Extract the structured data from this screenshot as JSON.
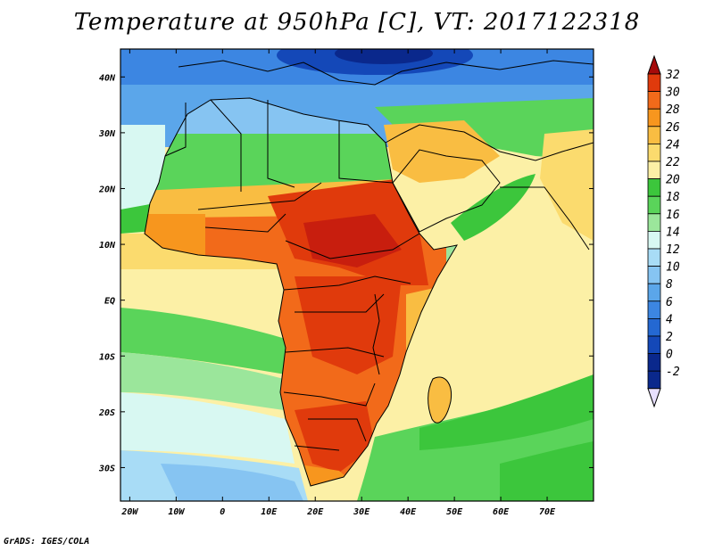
{
  "title": "Temperature at 950hPa [C], VT: 2017122318",
  "credit": "GrADS: IGES/COLA",
  "map": {
    "lat_range": [
      -36,
      45
    ],
    "lon_range": [
      -22,
      80
    ],
    "lat_ticks": [
      {
        "lat": 40,
        "label": "40N"
      },
      {
        "lat": 30,
        "label": "30N"
      },
      {
        "lat": 20,
        "label": "20N"
      },
      {
        "lat": 10,
        "label": "10N"
      },
      {
        "lat": 0,
        "label": "EQ"
      },
      {
        "lat": -10,
        "label": "10S"
      },
      {
        "lat": -20,
        "label": "20S"
      },
      {
        "lat": -30,
        "label": "30S"
      }
    ],
    "lon_ticks": [
      {
        "lon": -20,
        "label": "20W"
      },
      {
        "lon": -10,
        "label": "10W"
      },
      {
        "lon": 0,
        "label": "0"
      },
      {
        "lon": 10,
        "label": "10E"
      },
      {
        "lon": 20,
        "label": "20E"
      },
      {
        "lon": 30,
        "label": "30E"
      },
      {
        "lon": 40,
        "label": "40E"
      },
      {
        "lon": 50,
        "label": "50E"
      },
      {
        "lon": 60,
        "label": "60E"
      },
      {
        "lon": 70,
        "label": "70E"
      }
    ]
  },
  "colorbar": {
    "labels": [
      "32",
      "30",
      "28",
      "26",
      "24",
      "22",
      "20",
      "18",
      "16",
      "14",
      "12",
      "10",
      "8",
      "6",
      "4",
      "2",
      "0",
      "-2"
    ],
    "colors": [
      "#a50a0a",
      "#e03a0c",
      "#f26a1a",
      "#f7961e",
      "#f9bd42",
      "#fbdb6e",
      "#fcf0a6",
      "#3cc63c",
      "#5ad45a",
      "#9be69b",
      "#d8f8f2",
      "#a8dcf6",
      "#86c4f2",
      "#5ba6ea",
      "#3c86e2",
      "#2468d2",
      "#1448b8",
      "#0a288c",
      "#e8e0ff"
    ]
  }
}
